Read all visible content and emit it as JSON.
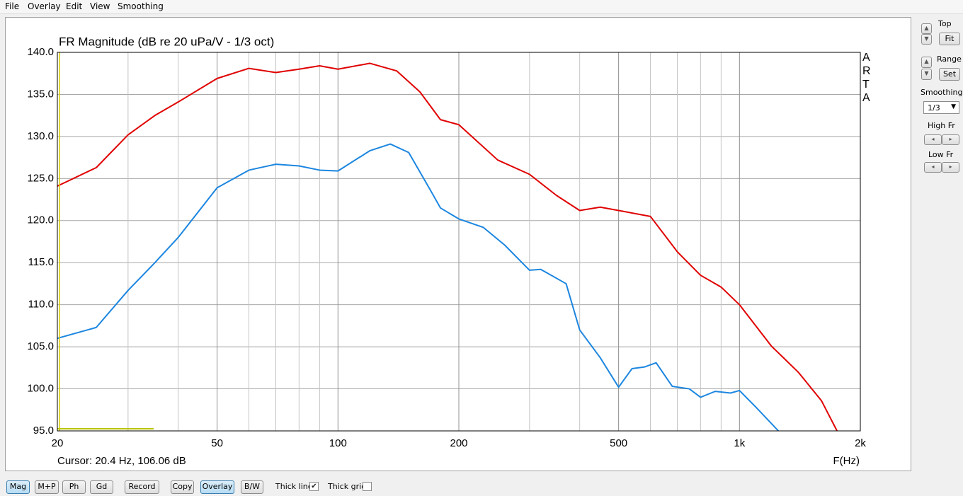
{
  "menu": [
    "File",
    "Overlay",
    "Edit",
    "View",
    "Smoothing"
  ],
  "chart_data": {
    "type": "line",
    "title": "FR Magnitude (dB re 20 uPa/V - 1/3 oct)",
    "x_label": "F(Hz)",
    "watermark": "ARTA",
    "cursor_label": "Cursor: 20.4 Hz, 106.06 dB",
    "xscale": "log",
    "grid": true,
    "xlim": [
      20,
      2000
    ],
    "ylim": [
      95,
      140
    ],
    "xticks": [
      20,
      50,
      100,
      200,
      500,
      {
        "value": 1000,
        "label": "1k"
      },
      {
        "value": 2000,
        "label": "2k"
      }
    ],
    "x_minor_grid": [
      30,
      40,
      60,
      70,
      80,
      90,
      300,
      400,
      600,
      700,
      800,
      900
    ],
    "yticks": [
      {
        "value": 95,
        "label": "95.0"
      },
      {
        "value": 100,
        "label": "100.0"
      },
      {
        "value": 105,
        "label": "105.0"
      },
      {
        "value": 110,
        "label": "110.0"
      },
      {
        "value": 115,
        "label": "115.0"
      },
      {
        "value": 120,
        "label": "120.0"
      },
      {
        "value": 125,
        "label": "125.0"
      },
      {
        "value": 130,
        "label": "130.0"
      },
      {
        "value": 135,
        "label": "135.0"
      },
      {
        "value": 140,
        "label": "140.0"
      }
    ],
    "series": [
      {
        "color": "#e00000",
        "x": [
          20,
          25,
          30,
          35,
          40,
          50,
          60,
          70,
          80,
          90,
          100,
          120,
          140,
          160,
          180,
          200,
          250,
          300,
          350,
          400,
          450,
          500,
          600,
          700,
          800,
          900,
          1000,
          1200,
          1400,
          1600,
          1750
        ],
        "values": [
          124.1,
          126.3,
          130.2,
          132.5,
          134.1,
          136.9,
          138.1,
          137.6,
          138.0,
          138.4,
          138.0,
          138.7,
          137.8,
          135.3,
          132.0,
          131.4,
          127.2,
          125.5,
          123.0,
          121.2,
          121.6,
          121.2,
          120.5,
          116.3,
          113.5,
          112.1,
          110.0,
          105.1,
          102.0,
          98.6,
          95.0
        ]
      },
      {
        "color": "#1c86e0",
        "x": [
          20,
          25,
          30,
          35,
          40,
          50,
          60,
          70,
          80,
          90,
          100,
          120,
          135,
          150,
          170,
          180,
          200,
          230,
          260,
          300,
          320,
          370,
          400,
          450,
          500,
          540,
          580,
          620,
          680,
          750,
          800,
          870,
          950,
          1000,
          1100,
          1250
        ],
        "values": [
          106.0,
          107.3,
          111.7,
          115.0,
          118.0,
          123.9,
          126.0,
          126.7,
          126.5,
          126.0,
          125.9,
          128.3,
          129.1,
          128.1,
          123.6,
          121.5,
          120.2,
          119.2,
          117.1,
          114.1,
          114.2,
          112.5,
          107.0,
          103.7,
          100.2,
          102.4,
          102.6,
          103.1,
          100.3,
          100.0,
          99.0,
          99.7,
          99.5,
          99.8,
          97.8,
          95.0
        ]
      }
    ]
  },
  "side_panel": {
    "top": {
      "label": "Top",
      "button": "Fit"
    },
    "range": {
      "label": "Range",
      "button": "Set"
    },
    "smoothing": {
      "label": "Smoothing",
      "value": "1/3"
    },
    "high_fr": "High Fr",
    "low_fr": "Low Fr"
  },
  "toolbar": {
    "buttons": [
      {
        "label": "Mag",
        "active": true
      },
      {
        "label": "M+P",
        "active": false
      },
      {
        "label": "Ph",
        "active": false
      },
      {
        "label": "Gd",
        "active": false
      },
      {
        "label": "Record",
        "active": false
      },
      {
        "label": "Copy",
        "active": false
      },
      {
        "label": "Overlay",
        "active": true
      },
      {
        "label": "B/W",
        "active": false
      }
    ],
    "checkboxes": [
      {
        "label": "Thick line",
        "checked": true
      },
      {
        "label": "Thick grid",
        "checked": false
      }
    ]
  }
}
